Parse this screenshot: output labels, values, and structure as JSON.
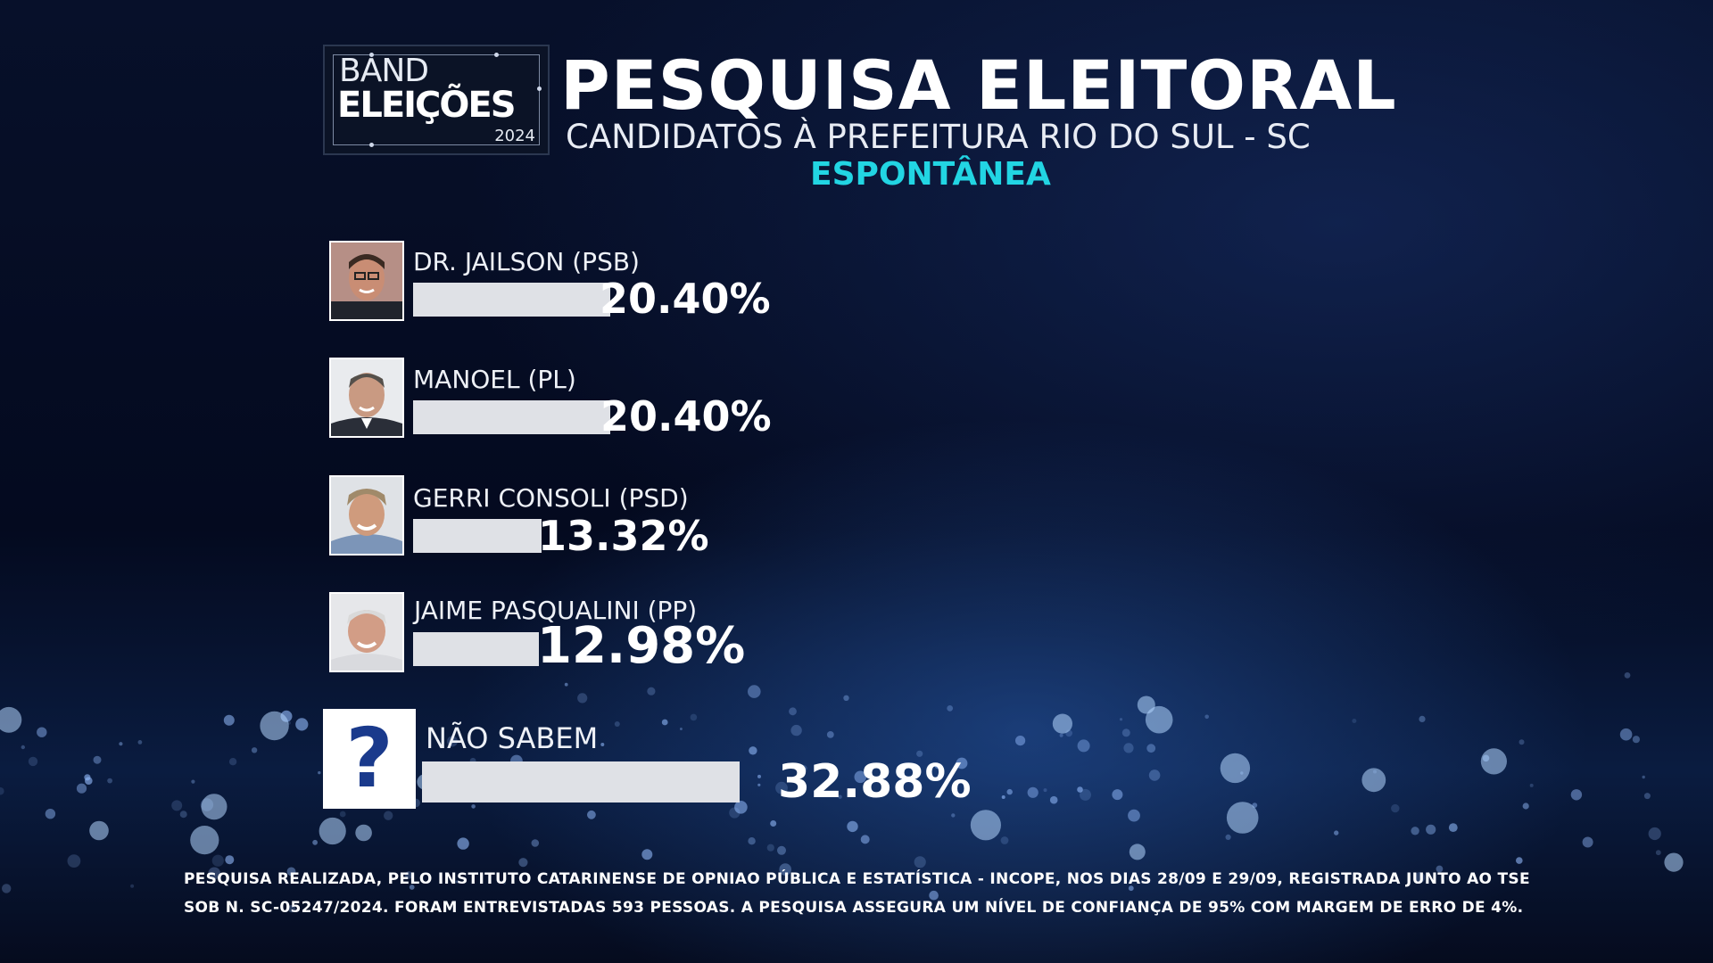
{
  "logo": {
    "line1": "BAND",
    "line2": "ELEIÇÕES",
    "year": "2024"
  },
  "header": {
    "title": "PESQUISA ELEITORAL",
    "subtitle": "CANDIDATOS À PREFEITURA RIO DO SUL - SC",
    "mode": "ESPONTÂNEA"
  },
  "colors": {
    "bar": "#dfe1e6",
    "accent": "#22d5e3",
    "background": "#050c22",
    "question_mark": "#1a3a8c"
  },
  "chart_data": {
    "type": "bar",
    "orientation": "horizontal",
    "title": "PESQUISA ELEITORAL",
    "categories": [
      "DR. JAILSON (PSB)",
      "MANOEL (PL)",
      "GERRI CONSOLI (PSD)",
      "JAIME PASQUALINI (PP)",
      "NÃO SABEM"
    ],
    "values": [
      20.4,
      20.4,
      13.32,
      12.98,
      32.88
    ],
    "value_labels": [
      "20.40%",
      "20.40%",
      "13.32%",
      "12.98%",
      "32.88%"
    ],
    "xlabel": "",
    "ylabel": ""
  },
  "candidates": [
    {
      "name": "DR. JAILSON (PSB)",
      "pct": "20.40%",
      "value": 20.4,
      "photo": "candidate-photo"
    },
    {
      "name": "MANOEL (PL)",
      "pct": "20.40%",
      "value": 20.4,
      "photo": "candidate-photo"
    },
    {
      "name": "GERRI CONSOLI (PSD)",
      "pct": "13.32%",
      "value": 13.32,
      "photo": "candidate-photo"
    },
    {
      "name": "JAIME PASQUALINI (PP)",
      "pct": "12.98%",
      "value": 12.98,
      "photo": "candidate-photo"
    },
    {
      "name": "NÃO SABEM",
      "pct": "32.88%",
      "value": 32.88,
      "icon": "question-mark-icon"
    }
  ],
  "question_mark": "?",
  "footnote": {
    "line1": "PESQUISA REALIZADA, PELO INSTITUTO CATARINENSE DE OPNIAO PÚBLICA E ESTATÍSTICA - INCOPE, NOS DIAS 28/09 E 29/09, REGISTRADA JUNTO AO TSE",
    "line2": "SOB N. SC-05247/2024. FORAM ENTREVISTADAS 593 PESSOAS. A PESQUISA ASSEGURA UM NÍVEL DE CONFIANÇA DE 95% COM MARGEM DE ERRO DE 4%."
  }
}
